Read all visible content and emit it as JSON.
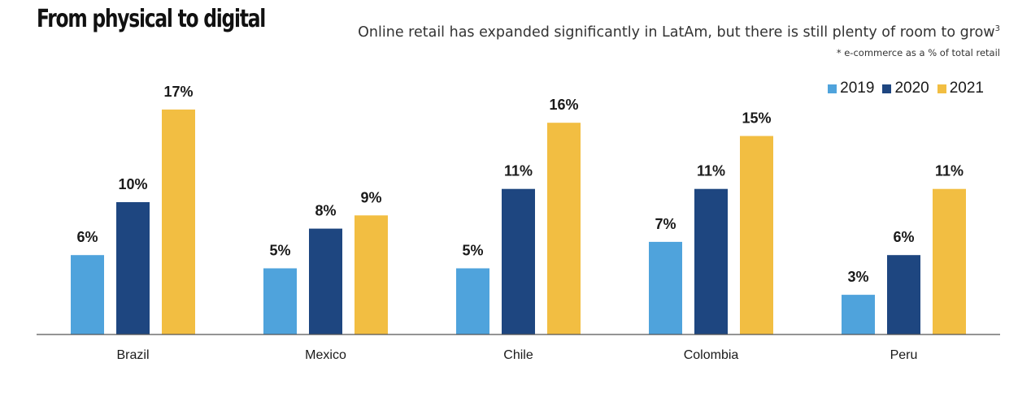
{
  "header": {
    "title": "From physical to digital",
    "subtitle": "Online retail has expanded significantly in LatAm, but there is still plenty of room to grow",
    "subtitle_sup": "3",
    "note": "* e-commerce as a % of total retail"
  },
  "chart_data": {
    "type": "bar",
    "title": "From physical to digital",
    "subtitle": "Online retail has expanded significantly in LatAm, but there is still plenty of room to grow",
    "note": "* e-commerce as a % of total retail",
    "xlabel": "",
    "ylabel": "",
    "ylim": [
      0,
      17
    ],
    "grid": false,
    "legend_position": "top-right",
    "categories": [
      "Brazil",
      "Mexico",
      "Chile",
      "Colombia",
      "Peru"
    ],
    "series": [
      {
        "name": "2019",
        "color": "#4FA3DC",
        "values": [
          6,
          5,
          5,
          7,
          3
        ],
        "labels": [
          "6%",
          "5%",
          "5%",
          "7%",
          "3%"
        ]
      },
      {
        "name": "2020",
        "color": "#1E4680",
        "values": [
          10,
          8,
          11,
          11,
          6
        ],
        "labels": [
          "10%",
          "8%",
          "11%",
          "11%",
          "6%"
        ]
      },
      {
        "name": "2021",
        "color": "#F2BE42",
        "values": [
          17,
          9,
          16,
          15,
          11
        ],
        "labels": [
          "17%",
          "9%",
          "16%",
          "15%",
          "11%"
        ]
      }
    ]
  }
}
